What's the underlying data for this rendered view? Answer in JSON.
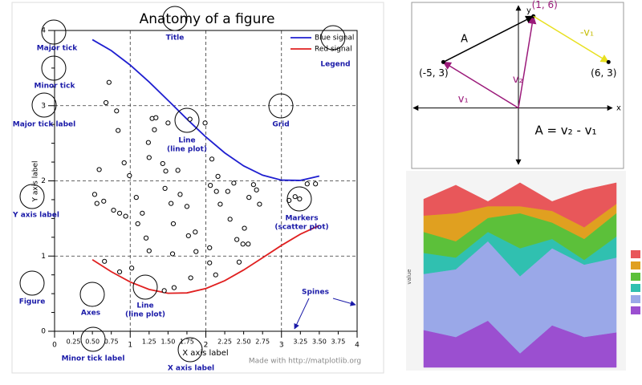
{
  "chart_data": [
    {
      "type": "line",
      "title": "Anatomy of a figure",
      "xlabel": "X axis label",
      "ylabel": "Y axis label",
      "xlim": [
        0,
        4
      ],
      "ylim": [
        0,
        4
      ],
      "xticks": [
        0,
        1,
        2,
        3,
        4
      ],
      "xminorticks": [
        0.25,
        {
          "value": 0.5,
          "label": "0.50"
        },
        0.75,
        1.25,
        {
          "value": 1.5,
          "label": "1.50"
        },
        1.75,
        2.25,
        {
          "value": 2.5,
          "label": "2.50"
        },
        2.75,
        3.25,
        {
          "value": 3.5,
          "label": "3.50"
        },
        3.75
      ],
      "yticks": [
        0,
        1,
        2,
        3,
        4
      ],
      "yminorticks": [
        0.25,
        0.5,
        0.75,
        1.25,
        1.5,
        1.75,
        2.25,
        2.5,
        2.75,
        3.25,
        3.5,
        3.75
      ],
      "grid": true,
      "legend": "upper right",
      "x": [
        0.5,
        0.75,
        1.0,
        1.25,
        1.5,
        1.75,
        2.0,
        2.25,
        2.5,
        2.75,
        3.0,
        3.25,
        3.5
      ],
      "series": [
        {
          "name": "Blue signal",
          "color": "#1f1fd0",
          "values": [
            3.878,
            3.732,
            3.54,
            3.315,
            3.071,
            2.822,
            2.584,
            2.372,
            2.199,
            2.076,
            2.01,
            2.006,
            2.064
          ]
        },
        {
          "name": "Red signal",
          "color": "#e02020",
          "values": [
            0.952,
            0.792,
            0.655,
            0.556,
            0.505,
            0.51,
            0.568,
            0.673,
            0.815,
            0.977,
            1.142,
            1.291,
            1.407
          ]
        }
      ],
      "scatter": {
        "color": "#000000",
        "x": [
          0.72,
          0.68,
          0.82,
          0.84,
          0.59,
          0.92,
          0.99,
          0.53,
          0.56,
          0.65,
          0.78,
          0.86,
          0.94,
          1.08,
          1.16,
          1.1,
          1.21,
          1.25,
          1.29,
          1.34,
          1.32,
          1.24,
          1.25,
          1.43,
          1.47,
          1.5,
          1.46,
          1.54,
          1.57,
          1.56,
          1.66,
          1.63,
          1.75,
          1.77,
          1.86,
          1.87,
          1.8,
          2.05,
          2.05,
          2.08,
          2.06,
          2.14,
          2.19,
          2.16,
          2.29,
          2.32,
          2.41,
          2.44,
          2.51,
          2.56,
          2.57,
          2.63,
          2.67,
          2.71,
          2.37,
          1.99,
          1.79,
          1.45,
          0.66,
          1.02,
          0.86,
          2.13,
          2.49,
          3.1,
          3.18,
          3.24,
          3.34,
          3.45,
          1.58
        ],
        "y": [
          3.31,
          3.04,
          2.93,
          2.67,
          2.15,
          2.24,
          2.07,
          1.82,
          1.7,
          1.73,
          1.61,
          1.57,
          1.53,
          1.78,
          1.57,
          1.43,
          1.24,
          1.07,
          2.83,
          2.84,
          2.68,
          2.51,
          2.31,
          2.23,
          2.13,
          2.77,
          1.9,
          1.7,
          1.43,
          1.03,
          1.82,
          2.14,
          1.66,
          1.27,
          1.32,
          1.06,
          0.71,
          1.11,
          0.91,
          2.29,
          1.94,
          1.86,
          1.69,
          2.06,
          1.86,
          1.49,
          1.22,
          0.92,
          1.37,
          1.16,
          1.78,
          1.95,
          1.88,
          1.69,
          1.97,
          2.77,
          2.82,
          0.54,
          0.93,
          0.84,
          0.79,
          0.75,
          1.16,
          1.74,
          1.79,
          1.76,
          1.96,
          1.96,
          0.58
        ]
      },
      "annotations": [
        [
          "Major tick"
        ],
        [
          "Minor tick"
        ],
        [
          "Major tick label"
        ],
        [
          "Y axis label"
        ],
        [
          "Figure"
        ],
        [
          "Axes"
        ],
        [
          "Line",
          "(line plot)"
        ],
        [
          "Minor tick label"
        ],
        [
          "X axis label"
        ],
        [
          "Title"
        ],
        [
          "Legend"
        ],
        [
          "Line",
          "(line plot)"
        ],
        [
          "Grid"
        ],
        [
          "Markers",
          "(scatter plot)"
        ],
        [
          "Spines"
        ]
      ],
      "footer": "Made with http://matplotlib.org"
    },
    {
      "type": "vector",
      "xlabel": "x",
      "ylabel": "y",
      "xlim": [
        -7,
        7
      ],
      "ylim": [
        -3.8,
        6.8
      ],
      "equation": "A = v₂ - v₁",
      "vectors": [
        {
          "label": "A",
          "color": "#000000",
          "from": [
            -5,
            3
          ],
          "to": [
            1,
            6
          ]
        },
        {
          "label": "v₁",
          "color": "#9b1a7a",
          "from": [
            0,
            0
          ],
          "to": [
            -5,
            3
          ],
          "tip_label": "(-5, 3)"
        },
        {
          "label": "v₂",
          "color": "#9b1a7a",
          "from": [
            0,
            0
          ],
          "to": [
            1,
            6
          ],
          "tip_label": "(1, 6)"
        },
        {
          "label": "-v₁",
          "color": "#e8e020",
          "from": [
            1,
            6
          ],
          "to": [
            6,
            3
          ],
          "tip_label": "(6, 3)"
        }
      ]
    },
    {
      "type": "stackedarea",
      "ylabel": "value",
      "xlim": [
        1,
        7
      ],
      "ylim": [
        0,
        40
      ],
      "x": [
        1,
        2,
        3,
        4,
        5,
        6,
        7
      ],
      "series": [
        {
          "color": "#9b4fd0",
          "values": [
            8,
            6.5,
            10,
            3,
            9,
            6.5,
            7.5
          ]
        },
        {
          "color": "#9aa8e8",
          "values": [
            12,
            14.5,
            17,
            16.5,
            16.5,
            15.5,
            16
          ]
        },
        {
          "color": "#30c0b0",
          "values": [
            4.5,
            2.5,
            2,
            6,
            2,
            1,
            4.5
          ]
        },
        {
          "color": "#5cc03a",
          "values": [
            4.5,
            3.5,
            3,
            7.5,
            3.5,
            4.5,
            5
          ]
        },
        {
          "color": "#e0a020",
          "values": [
            3.5,
            6,
            2.5,
            1.5,
            2.5,
            2.5,
            2
          ]
        },
        {
          "color": "#e8575a",
          "values": [
            3.5,
            6,
            1,
            5,
            2,
            8,
            4.5
          ]
        }
      ]
    }
  ]
}
